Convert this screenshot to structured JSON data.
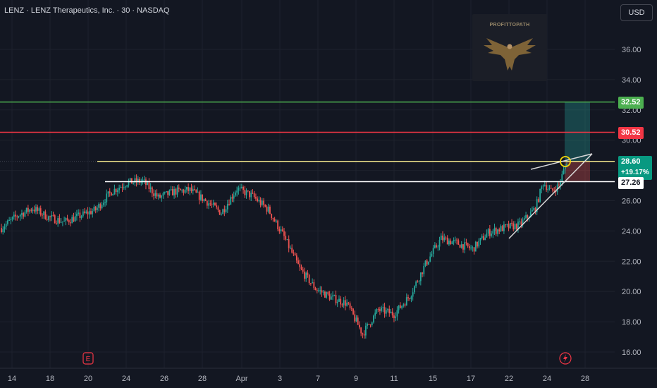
{
  "header": {
    "title": "LENZ · LENZ Therapeutics, Inc. · 30 · NASDAQ",
    "currency_button": "USD"
  },
  "watermark": {
    "text": "PROFITTOPATH",
    "icon": "eagle-icon"
  },
  "events": {
    "earnings_label": "E",
    "dividend_icon": "lightning-icon"
  },
  "colors": {
    "background": "#131722",
    "up": "#26a69a",
    "down": "#ef5350",
    "target_line": "#4caf50",
    "stop_line": "#f23645",
    "entry_line": "#f0e68c",
    "support_line": "#ffffff"
  },
  "price_tags": {
    "target": "32.52",
    "stop": "30.52",
    "last_price": "28.60",
    "change": "+19.17%",
    "support": "27.26"
  },
  "chart_data": {
    "type": "candlestick",
    "y_ticks": [
      "16.00",
      "18.00",
      "20.00",
      "22.00",
      "24.00",
      "26.00",
      "28.00",
      "30.00",
      "32.00",
      "34.00",
      "36.00"
    ],
    "ylim": [
      15.5,
      38.5
    ],
    "x_ticks": [
      "14",
      "18",
      "20",
      "24",
      "26",
      "28",
      "Apr",
      "3",
      "7",
      "9",
      "11",
      "15",
      "17",
      "22",
      "24",
      "28"
    ],
    "grid": true,
    "levels": [
      {
        "name": "target",
        "value": 32.52
      },
      {
        "name": "stop",
        "value": 30.52
      },
      {
        "name": "entry",
        "value": 28.6
      },
      {
        "name": "support",
        "value": 27.26
      }
    ],
    "trend": [
      {
        "x": 0,
        "y": 24.2
      },
      {
        "x": 10,
        "y": 25.0
      },
      {
        "x": 20,
        "y": 25.5
      },
      {
        "x": 30,
        "y": 24.9
      },
      {
        "x": 40,
        "y": 24.6
      },
      {
        "x": 50,
        "y": 25.0
      },
      {
        "x": 60,
        "y": 25.4
      },
      {
        "x": 70,
        "y": 26.6
      },
      {
        "x": 80,
        "y": 27.2
      },
      {
        "x": 90,
        "y": 27.3
      },
      {
        "x": 100,
        "y": 26.2
      },
      {
        "x": 110,
        "y": 26.6
      },
      {
        "x": 120,
        "y": 26.7
      },
      {
        "x": 130,
        "y": 26.0
      },
      {
        "x": 140,
        "y": 25.2
      },
      {
        "x": 150,
        "y": 26.8
      },
      {
        "x": 160,
        "y": 26.3
      },
      {
        "x": 170,
        "y": 25.4
      },
      {
        "x": 180,
        "y": 23.6
      },
      {
        "x": 190,
        "y": 21.5
      },
      {
        "x": 200,
        "y": 20.2
      },
      {
        "x": 210,
        "y": 19.6
      },
      {
        "x": 220,
        "y": 19.2
      },
      {
        "x": 230,
        "y": 17.2
      },
      {
        "x": 240,
        "y": 18.8
      },
      {
        "x": 250,
        "y": 18.5
      },
      {
        "x": 260,
        "y": 19.7
      },
      {
        "x": 270,
        "y": 21.8
      },
      {
        "x": 280,
        "y": 23.5
      },
      {
        "x": 290,
        "y": 23.2
      },
      {
        "x": 300,
        "y": 22.8
      },
      {
        "x": 310,
        "y": 23.9
      },
      {
        "x": 320,
        "y": 24.2
      },
      {
        "x": 330,
        "y": 24.4
      },
      {
        "x": 340,
        "y": 25.5
      },
      {
        "x": 345,
        "y": 27.2
      },
      {
        "x": 350,
        "y": 26.6
      },
      {
        "x": 355,
        "y": 27.0
      },
      {
        "x": 360,
        "y": 28.6
      }
    ]
  }
}
